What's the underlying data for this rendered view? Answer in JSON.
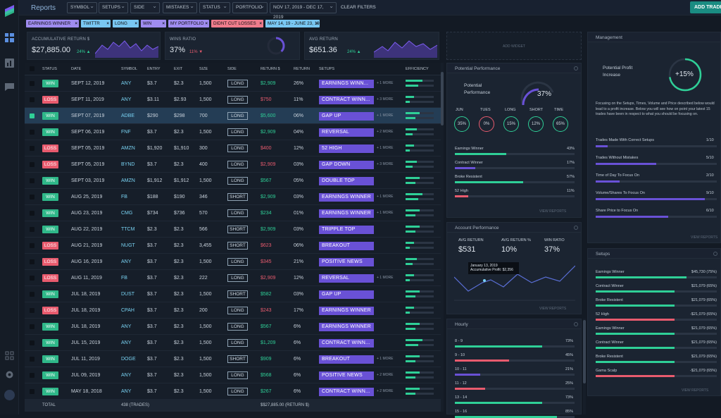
{
  "header": {
    "title": "Reports",
    "filters": [
      "SYMBOL",
      "SETUPS",
      "SIDE",
      "MISTAKES",
      "STATUS",
      "PORTFOLIO",
      "NOV 17, 2019 - DEC 17, 2019"
    ],
    "clear": "CLEAR FILTERS",
    "add_trade": "ADD TRADE"
  },
  "chips": [
    "EARNINGS WINNER",
    "TWITTR",
    "LONG",
    "WIN",
    "MY PORTFOLIO",
    "DIDNT CUT LOSSES",
    "MAY 14, 19 - JUNE 23, 19"
  ],
  "stats": {
    "acc_label": "ACCUMULATIVE RETURN $",
    "acc_value": "$27,885.00",
    "acc_pct": "24% ▲",
    "wins_label": "WINS RATIO",
    "wins_value": "37%",
    "wins_pct": "11% ▼",
    "avg_label": "AVG RETURN",
    "avg_value": "$651.36",
    "avg_pct": "24% ▲"
  },
  "add_widget": "ADD WIDGET",
  "columns": [
    "STATUS",
    "DATE",
    "SYMBOL",
    "ENTRY",
    "EXIT",
    "SIZE",
    "SIDE",
    "RETURN $",
    "RETURN",
    "SETUPS",
    "EFFICIENCY"
  ],
  "rows": [
    {
      "status": "WIN",
      "date": "SEPT 12, 2019",
      "symbol": "ANY",
      "entry": "$3.7",
      "exit": "$2.3",
      "size": "1,500",
      "side": "LONG",
      "ret": "$2,909",
      "retp": "26%",
      "setup": "EARNINGS WINN...",
      "more": "+ 1 MORE",
      "eff": 0.6,
      "sel": false
    },
    {
      "status": "LOSS",
      "date": "SEPT 11, 2019",
      "symbol": "ANY",
      "entry": "$3.11",
      "exit": "$2.93",
      "size": "1,500",
      "side": "LONG",
      "ret": "$750",
      "retp": "11%",
      "setup": "CONTRACT WINN...",
      "more": "+ 3 MORE",
      "eff": 0.3,
      "sel": false
    },
    {
      "status": "WIN",
      "date": "SEPT 07, 2019",
      "symbol": "ADBE",
      "entry": "$290",
      "exit": "$298",
      "size": "700",
      "side": "LONG",
      "ret": "$5,600",
      "retp": "06%",
      "setup": "GAP UP",
      "more": "+ 1 MORE",
      "eff": 0.5,
      "sel": true
    },
    {
      "status": "WIN",
      "date": "SEPT 06, 2019",
      "symbol": "FNF",
      "entry": "$3.7",
      "exit": "$2.3",
      "size": "1,500",
      "side": "LONG",
      "ret": "$2,909",
      "retp": "04%",
      "setup": "REVERSAL",
      "more": "+ 2 MORE",
      "eff": 0.4,
      "sel": false
    },
    {
      "status": "LOSS",
      "date": "SEPT 05, 2019",
      "symbol": "AMZN",
      "entry": "$1,920",
      "exit": "$1,910",
      "size": "300",
      "side": "LONG",
      "ret": "$400",
      "retp": "12%",
      "setup": "52 HIGH",
      "more": "+ 1 MORE",
      "eff": 0.3,
      "sel": false
    },
    {
      "status": "LOSS",
      "date": "SEPT 05, 2019",
      "symbol": "BYND",
      "entry": "$3.7",
      "exit": "$2.3",
      "size": "400",
      "side": "LONG",
      "ret": "$2,909",
      "retp": "03%",
      "setup": "GAP DOWN",
      "more": "+ 3 MORE",
      "eff": 0.4,
      "sel": false
    },
    {
      "status": "WIN",
      "date": "SEPT 03, 2019",
      "symbol": "AMZN",
      "entry": "$1,912",
      "exit": "$1,912",
      "size": "1,500",
      "side": "LONG",
      "ret": "$567",
      "retp": "05%",
      "setup": "DOUBLE TOP",
      "more": "",
      "eff": 0.5,
      "sel": false
    },
    {
      "status": "WIN",
      "date": "AUG 25, 2019",
      "symbol": "FB",
      "entry": "$188",
      "exit": "$190",
      "size": "346",
      "side": "SHORT",
      "ret": "$2,909",
      "retp": "03%",
      "setup": "EARNINGS WINNER",
      "more": "+ 1 MORE",
      "eff": 0.6,
      "sel": false
    },
    {
      "status": "WIN",
      "date": "AUG 23, 2019",
      "symbol": "CMG",
      "entry": "$734",
      "exit": "$736",
      "size": "570",
      "side": "LONG",
      "ret": "$234",
      "retp": "01%",
      "setup": "EARNINGS WINNER",
      "more": "+ 1 MORE",
      "eff": 0.5,
      "sel": false
    },
    {
      "status": "WIN",
      "date": "AUG 22, 2019",
      "symbol": "TTCM",
      "entry": "$2.3",
      "exit": "$2.3",
      "size": "566",
      "side": "SHORT",
      "ret": "$2,909",
      "retp": "03%",
      "setup": "TRIPPLE TOP",
      "more": "",
      "eff": 0.5,
      "sel": false
    },
    {
      "status": "LOSS",
      "date": "AUG 21, 2019",
      "symbol": "NUGT",
      "entry": "$3.7",
      "exit": "$2.3",
      "size": "3,455",
      "side": "SHORT",
      "ret": "$623",
      "retp": "06%",
      "setup": "BREAKOUT",
      "more": "",
      "eff": 0.3,
      "sel": false
    },
    {
      "status": "LOSS",
      "date": "AUG 16, 2019",
      "symbol": "ANY",
      "entry": "$3.7",
      "exit": "$2.3",
      "size": "1,500",
      "side": "LONG",
      "ret": "$345",
      "retp": "21%",
      "setup": "POSITIVE NEWS",
      "more": "",
      "eff": 0.4,
      "sel": false
    },
    {
      "status": "LOSS",
      "date": "AUG 11, 2019",
      "symbol": "FB",
      "entry": "$3.7",
      "exit": "$2.3",
      "size": "222",
      "side": "LONG",
      "ret": "$2,909",
      "retp": "12%",
      "setup": "REVERSAL",
      "more": "+ 1 MORE",
      "eff": 0.3,
      "sel": false
    },
    {
      "status": "WIN",
      "date": "JUL 18, 2019",
      "symbol": "DUST",
      "entry": "$3.7",
      "exit": "$2.3",
      "size": "1,500",
      "side": "SHORT",
      "ret": "$582",
      "retp": "03%",
      "setup": "GAP UP",
      "more": "",
      "eff": 0.5,
      "sel": false
    },
    {
      "status": "LOSS",
      "date": "JUL 18, 2019",
      "symbol": "CPAH",
      "entry": "$3.7",
      "exit": "$2.3",
      "size": "200",
      "side": "LONG",
      "ret": "$243",
      "retp": "17%",
      "setup": "EARNINGS WINNER",
      "more": "",
      "eff": 0.3,
      "sel": false
    },
    {
      "status": "WIN",
      "date": "JUL 18, 2019",
      "symbol": "ANY",
      "entry": "$3.7",
      "exit": "$2.3",
      "size": "1,500",
      "side": "LONG",
      "ret": "$567",
      "retp": "6%",
      "setup": "EARNINGS WINNER",
      "more": "",
      "eff": 0.5,
      "sel": false
    },
    {
      "status": "WIN",
      "date": "JUL 15, 2019",
      "symbol": "ANY",
      "entry": "$3.7",
      "exit": "$2.3",
      "size": "1,500",
      "side": "LONG",
      "ret": "$1,209",
      "retp": "6%",
      "setup": "CONTRACT WINN...",
      "more": "",
      "eff": 0.6,
      "sel": false
    },
    {
      "status": "WIN",
      "date": "JUL 11, 2019",
      "symbol": "DOGE",
      "entry": "$3.7",
      "exit": "$2.3",
      "size": "1,500",
      "side": "SHORT",
      "ret": "$909",
      "retp": "6%",
      "setup": "BREAKOUT",
      "more": "+ 1 MORE",
      "eff": 0.5,
      "sel": false
    },
    {
      "status": "WIN",
      "date": "JUL 09, 2019",
      "symbol": "ANY",
      "entry": "$3.7",
      "exit": "$2.3",
      "size": "1,500",
      "side": "LONG",
      "ret": "$568",
      "retp": "6%",
      "setup": "POSITIVE NEWS",
      "more": "+ 2 MORE",
      "eff": 0.5,
      "sel": false
    },
    {
      "status": "WIN",
      "date": "MAY 18, 2018",
      "symbol": "ANY",
      "entry": "$3.7",
      "exit": "$2.3",
      "size": "1,500",
      "side": "LONG",
      "ret": "$267",
      "retp": "6%",
      "setup": "CONTRACT WINN...",
      "more": "+ 2 MORE",
      "eff": 0.5,
      "sel": false
    }
  ],
  "footer": {
    "total": "TOTAL",
    "trades": "438 (TRADES)",
    "sum": "$$27,885.00 (RETURN $)"
  },
  "potential": {
    "title": "Potential  Performance",
    "label": "Potential Performance",
    "value": "37%",
    "circles": [
      {
        "k": "JUN",
        "v": "35%"
      },
      {
        "k": "TUES",
        "v": "0%"
      },
      {
        "k": "LONG",
        "v": "15%"
      },
      {
        "k": "SHORT",
        "v": "12%"
      },
      {
        "k": "TIME",
        "v": "65%"
      }
    ],
    "bars": [
      {
        "k": "Earnings Winner",
        "v": "43%",
        "f": 0.43,
        "c": "#2fcf97"
      },
      {
        "k": "Contract Winner",
        "v": "17%",
        "f": 0.17,
        "c": "#6951d6"
      },
      {
        "k": "Broke Resistent",
        "v": "57%",
        "f": 0.57,
        "c": "#2fcf97"
      },
      {
        "k": "52 High",
        "v": "11%",
        "f": 0.11,
        "c": "#e85b6e"
      }
    ],
    "view": "VIEW REPORTS"
  },
  "account": {
    "title": "Account Performance",
    "items": [
      {
        "k": "AVG RETURN",
        "v": "$531"
      },
      {
        "k": "AVG RETURN %",
        "v": "10%"
      },
      {
        "k": "WIN RATIO",
        "v": "37%"
      }
    ],
    "tooltip1": "January 13, 2019",
    "tooltip2": "Accumulative Profit: $2,356",
    "view": "VIEW REPORTS"
  },
  "hourly": {
    "title": "Hourly",
    "bars": [
      {
        "k": "8 - 9",
        "v": "73%",
        "f": 0.73,
        "c": "#2fcf97"
      },
      {
        "k": "9 - 10",
        "v": "45%",
        "f": 0.45,
        "c": "#e85b6e"
      },
      {
        "k": "10 - 11",
        "v": "21%",
        "f": 0.21,
        "c": "#6951d6"
      },
      {
        "k": "11 - 12",
        "v": "25%",
        "f": 0.25,
        "c": "#e85b6e"
      },
      {
        "k": "13 - 14",
        "v": "73%",
        "f": 0.73,
        "c": "#2fcf97"
      },
      {
        "k": "15 - 16",
        "v": "85%",
        "f": 0.85,
        "c": "#2fcf97"
      }
    ]
  },
  "management": {
    "title": "Management",
    "label": "Potential Profit Increase",
    "value": "+15%",
    "desc": "Focusing on the Setups, Times, Volume and Price described below would lead to a profit increase. Below you will see how on point your latest 15 trades have been in respect to what you should be focusing on.",
    "bars": [
      {
        "k": "Trades Made With Correct Setups",
        "v": "1/10",
        "f": 0.1
      },
      {
        "k": "Trades Without Mistakes",
        "v": "5/10",
        "f": 0.5
      },
      {
        "k": "Time of Day To Focus On",
        "v": "2/10",
        "f": 0.2
      },
      {
        "k": "Volume/Shares To Focus On",
        "v": "9/10",
        "f": 0.9
      },
      {
        "k": "Share Price to Focus On",
        "v": "6/10",
        "f": 0.6
      }
    ],
    "view": "VIEW REPORTS"
  },
  "setups": {
    "title": "Setups",
    "bars": [
      {
        "k": "Earnings Winner",
        "v": "$45,730 (75%)",
        "f": 0.75,
        "c": "#2fcf97"
      },
      {
        "k": "Contract Winner",
        "v": "$21,079 (65%)",
        "f": 0.65,
        "c": "#2fcf97"
      },
      {
        "k": "Broke Resistent",
        "v": "$21,079 (65%)",
        "f": 0.65,
        "c": "#2fcf97"
      },
      {
        "k": "52 High",
        "v": "-$21,079 (65%)",
        "f": 0.65,
        "c": "#e85b6e"
      },
      {
        "k": "Earnings Winner",
        "v": "$21,079 (65%)",
        "f": 0.65,
        "c": "#2fcf97"
      },
      {
        "k": "Contract Winner",
        "v": "$21,079 (65%)",
        "f": 0.65,
        "c": "#2fcf97"
      },
      {
        "k": "Broke Resistent",
        "v": "$21,079 (65%)",
        "f": 0.65,
        "c": "#2fcf97"
      },
      {
        "k": "Gama Scalp",
        "v": "-$21,079 (65%)",
        "f": 0.65,
        "c": "#e85b6e"
      }
    ],
    "view": "VIEW REPORTS"
  }
}
